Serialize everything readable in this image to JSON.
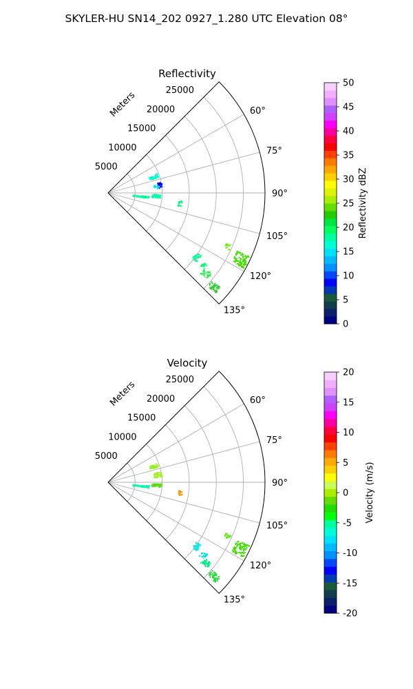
{
  "figure": {
    "suptitle": "SKYLER-HU  SN14_202  0927_1.280 UTC Elevation 08°"
  },
  "chart_data": [
    {
      "type": "polar-sector",
      "title": "Reflectivity",
      "range_axis_label": "Meters",
      "range_ticks": [
        5000,
        10000,
        15000,
        20000,
        25000
      ],
      "range_max": 29000,
      "azimuth_range": [
        45,
        135
      ],
      "azimuth_ticks": [
        60,
        75,
        90,
        105,
        120,
        135
      ],
      "azimuth_tick_labels": [
        "60°",
        "75°",
        "90°",
        "105°",
        "120°",
        "135°"
      ],
      "grid": true,
      "colorbar": {
        "label": "Reflectivity dBZ",
        "min": 0,
        "max": 50,
        "ticks": [
          0,
          5,
          10,
          15,
          20,
          25,
          30,
          35,
          40,
          45,
          50
        ],
        "colormap": "NWSRef",
        "colors": [
          "#000080",
          "#0b1f6b",
          "#123d4d",
          "#1a5a3a",
          "#003ab0",
          "#0000ff",
          "#0047ff",
          "#0090ff",
          "#00bcff",
          "#00e0ff",
          "#00ffd5",
          "#00ff9e",
          "#00ff60",
          "#00e640",
          "#22cc00",
          "#66dd00",
          "#aaee00",
          "#ddf500",
          "#ffff00",
          "#ffd000",
          "#ffa800",
          "#ff7a00",
          "#ff4000",
          "#ff0000",
          "#ff0040",
          "#ff00a0",
          "#ff00ff",
          "#d040ff",
          "#b060ff",
          "#e090ff",
          "#f0b0ff",
          "#f8d0ff"
        ]
      },
      "echoes": [
        {
          "az_range": [
            68,
            72
          ],
          "range_km": [
            8.0,
            9.7
          ],
          "value": 13,
          "sample": "#00ffcc"
        },
        {
          "az_range": [
            78,
            84
          ],
          "range_km": [
            9.2,
            9.9
          ],
          "value": 5,
          "sample": "#0000ff"
        },
        {
          "az_range": [
            80,
            84
          ],
          "range_km": [
            8.5,
            9.2
          ],
          "value": 12,
          "sample": "#00e0ff"
        },
        {
          "az_range": [
            91,
            95
          ],
          "range_km": [
            8.0,
            9.7
          ],
          "value": 14,
          "sample": "#00ffaa"
        },
        {
          "az_range": [
            94,
            97
          ],
          "range_km": [
            4.5,
            7.5
          ],
          "value": 13,
          "sample": "#00ff99"
        },
        {
          "az_range": [
            96,
            100
          ],
          "range_km": [
            13.0,
            13.6
          ],
          "value": 15,
          "sample": "#00ff80"
        },
        {
          "az_range": [
            114,
            119
          ],
          "range_km": [
            26.0,
            28.5
          ],
          "value": 20,
          "sample": "#44dd00"
        },
        {
          "az_range": [
            113,
            115
          ],
          "range_km": [
            23.5,
            24.5
          ],
          "value": 19,
          "sample": "#66ee00"
        },
        {
          "az_range": [
            124,
            128
          ],
          "range_km": [
            19.5,
            20.5
          ],
          "value": 15,
          "sample": "#00ff90"
        },
        {
          "az_range": [
            126,
            129
          ],
          "range_km": [
            21.5,
            22.5
          ],
          "value": 16,
          "sample": "#00ff70"
        },
        {
          "az_range": [
            128,
            131
          ],
          "range_km": [
            22.5,
            24.0
          ],
          "value": 17,
          "sample": "#22ee44"
        },
        {
          "az_range": [
            130,
            133
          ],
          "range_km": [
            25.0,
            27.0
          ],
          "value": 19,
          "sample": "#33cc33"
        }
      ]
    },
    {
      "type": "polar-sector",
      "title": "Velocity",
      "range_axis_label": "Meters",
      "range_ticks": [
        5000,
        10000,
        15000,
        20000,
        25000
      ],
      "range_max": 29000,
      "azimuth_range": [
        45,
        135
      ],
      "azimuth_ticks": [
        60,
        75,
        90,
        105,
        120,
        135
      ],
      "azimuth_tick_labels": [
        "60°",
        "75°",
        "90°",
        "105°",
        "120°",
        "135°"
      ],
      "grid": true,
      "colorbar": {
        "label": "Velocity (m/s)",
        "min": -20,
        "max": 20,
        "ticks": [
          -20,
          -15,
          -10,
          -5,
          0,
          5,
          10,
          15,
          20
        ],
        "colormap": "NWSVel",
        "colors": [
          "#000080",
          "#0b1f6b",
          "#123d4d",
          "#1a5a3a",
          "#003ab0",
          "#0000ff",
          "#0047ff",
          "#0090ff",
          "#00bcff",
          "#00e0ff",
          "#00ffd5",
          "#00ff9e",
          "#00ff00",
          "#22dd00",
          "#66dd00",
          "#aaee00",
          "#ccff55",
          "#ffff00",
          "#ffd000",
          "#ffa800",
          "#ff7a00",
          "#ff4000",
          "#ff0000",
          "#ff0040",
          "#ff00a0",
          "#ff00ff",
          "#d040ff",
          "#b060ff",
          "#e090ff",
          "#f0b0ff",
          "#f8d0ff"
        ]
      },
      "echoes": [
        {
          "az_range": [
            68,
            72
          ],
          "range_km": [
            8.0,
            9.7
          ],
          "value": -4,
          "sample": "#99ee22"
        },
        {
          "az_range": [
            78,
            84
          ],
          "range_km": [
            8.5,
            9.9
          ],
          "value": -3,
          "sample": "#aaee33"
        },
        {
          "az_range": [
            91,
            95
          ],
          "range_km": [
            8.0,
            9.7
          ],
          "value": -6,
          "sample": "#55dd11"
        },
        {
          "az_range": [
            94,
            97
          ],
          "range_km": [
            4.5,
            7.5
          ],
          "value": -10,
          "sample": "#00ffaa"
        },
        {
          "az_range": [
            96,
            100
          ],
          "range_km": [
            13.0,
            13.6
          ],
          "value": 3,
          "sample": "#ff9900"
        },
        {
          "az_range": [
            114,
            119
          ],
          "range_km": [
            26.0,
            28.5
          ],
          "value": -6,
          "sample": "#44dd00"
        },
        {
          "az_range": [
            113,
            115
          ],
          "range_km": [
            23.5,
            24.5
          ],
          "value": -5,
          "sample": "#55ee00"
        },
        {
          "az_range": [
            124,
            128
          ],
          "range_km": [
            19.5,
            20.5
          ],
          "value": -12,
          "sample": "#00e8e8"
        },
        {
          "az_range": [
            126,
            129
          ],
          "range_km": [
            21.5,
            22.5
          ],
          "value": -12,
          "sample": "#00dddd"
        },
        {
          "az_range": [
            128,
            131
          ],
          "range_km": [
            22.5,
            24.0
          ],
          "value": -9,
          "sample": "#00ee88"
        },
        {
          "az_range": [
            130,
            133
          ],
          "range_km": [
            25.0,
            27.0
          ],
          "value": -7,
          "sample": "#22dd33"
        }
      ]
    }
  ]
}
